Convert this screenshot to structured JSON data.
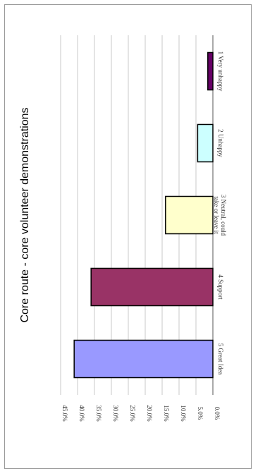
{
  "chart_data": {
    "type": "bar",
    "title": "Core route - core volunteer demonstrations",
    "xlabel": "",
    "ylabel": "",
    "orientation": "rotated-90-clockwise",
    "ylim": [
      0,
      45
    ],
    "y_ticks": [
      "0.0%",
      "5.0%",
      "10.0%",
      "15.0%",
      "20.0%",
      "25.0%",
      "30.0%",
      "35.0%",
      "40.0%",
      "45.0%"
    ],
    "categories": [
      "5 Great Idea",
      "4 Support",
      "3 Neutral, could take or leave it",
      "2 Unhappy",
      "1 Very unhappy"
    ],
    "values": [
      41.0,
      36.0,
      14.0,
      4.5,
      1.5
    ],
    "colors": [
      "#9999ff",
      "#993366",
      "#ffffcc",
      "#ccffff",
      "#660066"
    ],
    "grid": true,
    "legend": "none"
  }
}
